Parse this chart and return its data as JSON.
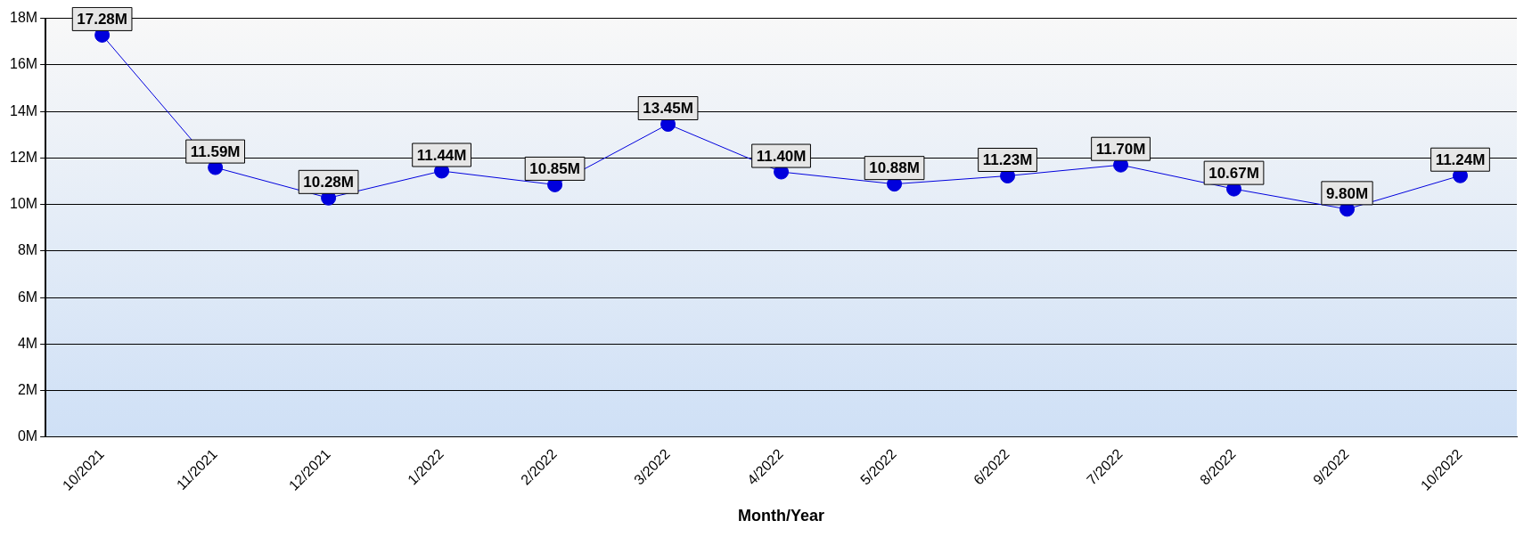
{
  "chart_data": {
    "type": "line",
    "xlabel": "Month/Year",
    "categories": [
      "10/2021",
      "11/2021",
      "12/2021",
      "1/2022",
      "2/2022",
      "3/2022",
      "4/2022",
      "5/2022",
      "6/2022",
      "7/2022",
      "8/2022",
      "9/2022",
      "10/2022"
    ],
    "series": [
      {
        "color": "#0000dd",
        "values": [
          17.28,
          11.59,
          10.28,
          11.44,
          10.85,
          13.45,
          11.4,
          10.88,
          11.23,
          11.7,
          10.67,
          9.8,
          11.24
        ],
        "value_labels": [
          "17.28M",
          "11.59M",
          "10.28M",
          "11.44M",
          "10.85M",
          "13.45M",
          "11.40M",
          "10.88M",
          "11.23M",
          "11.70M",
          "10.67M",
          "9.80M",
          "11.24M"
        ]
      }
    ],
    "ylim": [
      0,
      18
    ],
    "yticks": [
      {
        "value": 0,
        "label": "0M"
      },
      {
        "value": 2,
        "label": "2M"
      },
      {
        "value": 4,
        "label": "4M"
      },
      {
        "value": 6,
        "label": "6M"
      },
      {
        "value": 8,
        "label": "8M"
      },
      {
        "value": 10,
        "label": "10M"
      },
      {
        "value": 12,
        "label": "12M"
      },
      {
        "value": 14,
        "label": "14M"
      },
      {
        "value": 16,
        "label": "16M"
      },
      {
        "value": 18,
        "label": "18M"
      }
    ],
    "grid": "y",
    "marker": "circle",
    "line_style": "solid",
    "legend": false
  }
}
